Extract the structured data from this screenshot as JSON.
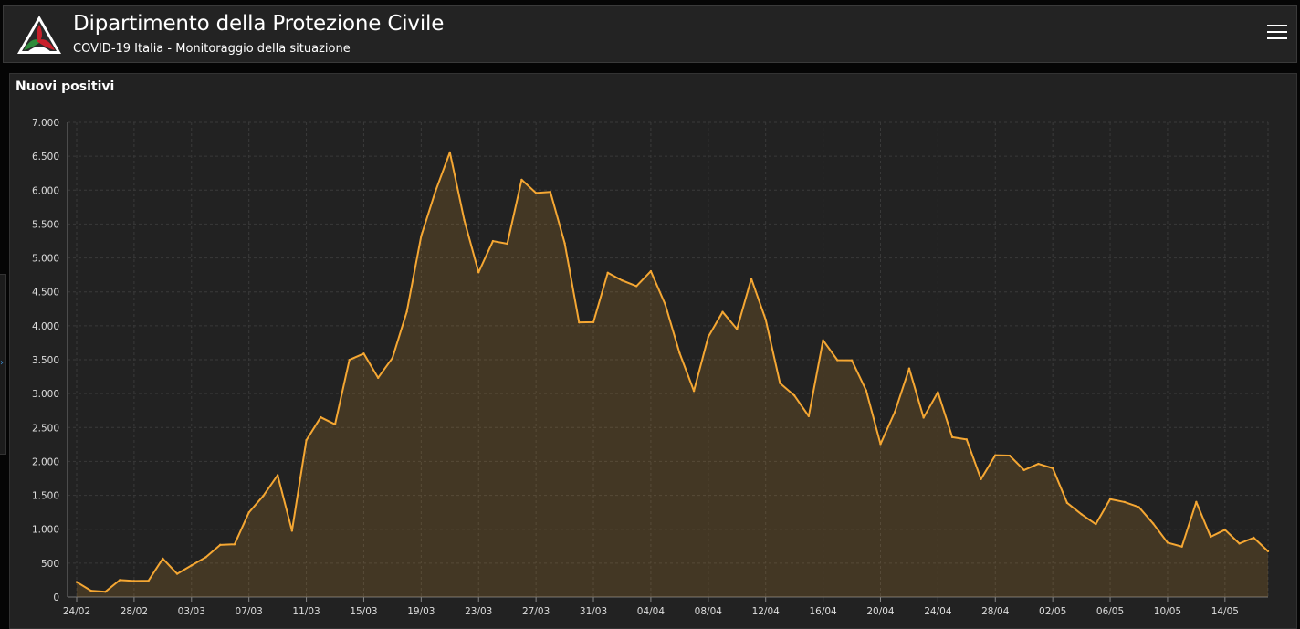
{
  "header": {
    "title": "Dipartimento della Protezione Civile",
    "subtitle": "COVID-19 Italia - Monitoraggio della situazione",
    "logo_icon": "protezione-civile-logo",
    "menu_icon": "hamburger-menu-icon"
  },
  "panel": {
    "title": "Nuovi positivi"
  },
  "colors": {
    "line": "#f5a733",
    "fill": "rgba(245,167,51,0.16)",
    "panel_bg": "#222222",
    "grid": "#3a3a3a",
    "tick_text": "#dddddd"
  },
  "chart_data": {
    "type": "area",
    "title": "Nuovi positivi",
    "xlabel": "",
    "ylabel": "",
    "ylim": [
      0,
      7000
    ],
    "y_ticks": [
      0,
      500,
      1000,
      1500,
      2000,
      2500,
      3000,
      3500,
      4000,
      4500,
      5000,
      5500,
      6000,
      6500,
      7000
    ],
    "y_tick_labels": [
      "0",
      "500",
      "1.000",
      "1.500",
      "2.000",
      "2.500",
      "3.000",
      "3.500",
      "4.000",
      "4.500",
      "5.000",
      "5.500",
      "6.000",
      "6.500",
      "7.000"
    ],
    "x_tick_labels": [
      "24/02",
      "28/02",
      "03/03",
      "07/03",
      "11/03",
      "15/03",
      "19/03",
      "23/03",
      "27/03",
      "31/03",
      "04/04",
      "08/04",
      "12/04",
      "16/04",
      "20/04",
      "24/04",
      "28/04",
      "02/05",
      "06/05",
      "10/05",
      "14/05"
    ],
    "x_tick_every": 4,
    "grid": true,
    "series": [
      {
        "values": [
          221,
          93,
          78,
          250,
          238,
          240,
          566,
          342,
          466,
          587,
          769,
          778,
          1247,
          1492,
          1797,
          977,
          2313,
          2651,
          2547,
          3497,
          3590,
          3233,
          3526,
          4207,
          5322,
          5986,
          6557,
          5560,
          4789,
          5249,
          5210,
          6153,
          5959,
          5974,
          5217,
          4050,
          4053,
          4782,
          4668,
          4585,
          4805,
          4316,
          3599,
          3039,
          3836,
          4204,
          3951,
          4694,
          4092,
          3153,
          2972,
          2667,
          3786,
          3493,
          3491,
          3047,
          2256,
          2729,
          3370,
          2646,
          3021,
          2357,
          2324,
          1739,
          2091,
          2086,
          1872,
          1965,
          1900,
          1389,
          1221,
          1075,
          1444,
          1401,
          1327,
          1083,
          802,
          744,
          1402,
          888,
          992,
          789,
          875,
          675
        ]
      }
    ]
  }
}
